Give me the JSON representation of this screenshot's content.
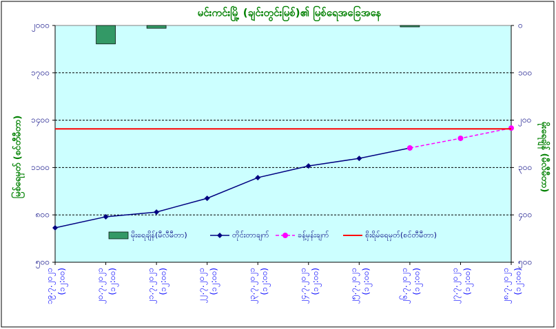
{
  "chart_data": {
    "type": "combo",
    "title": "မင်းကင်းမြို့ (ချင်းတွင်းမြစ်)၏ မြစ်ရေအခြေအနေ",
    "y_label": "မြစ်ရေမှတ် (စင်တီမီတာ)",
    "y2_label": "မိုးရေချိန် (မီလီမီတာ)",
    "categories": [
      [
        "၁၉.၇.၂၀၂၁",
        "(၁၂:၀၀)"
      ],
      [
        "၂၀.၇.၂၀၂၁",
        "(၁၂:၀၀)"
      ],
      [
        "၂၁.၇.၂၀၂၁",
        "(၁၂:၀၀)"
      ],
      [
        "၂၂.၇.၂၀၂၁",
        "(၁၂:၀၀)"
      ],
      [
        "၂၃.၇.၂၀၂၁",
        "(၁၂:၀၀)"
      ],
      [
        "၂၄.၇.၂၀၂၁",
        "(၁၂:၀၀)"
      ],
      [
        "၂၅.၇.၂၀၂၁",
        "(၁၂:၀၀)"
      ],
      [
        "၂၆.၇.၂၀၂၁",
        "(၁၂:၀၀)"
      ],
      [
        "၂၇.၇.၂၀၂၁",
        "(၁၂:၀၀)"
      ],
      [
        "၂၈.၇.၂၀၂၁",
        "(၁၂:၀၀)"
      ]
    ],
    "series": [
      {
        "name": "မိုးရေချိန်(မီလီမီတာ)",
        "kind": "bar",
        "axis": "y2",
        "color": "#339966",
        "values": [
          0,
          39,
          6,
          0,
          0,
          0,
          0,
          3,
          0,
          0
        ]
      },
      {
        "name": "တိုင်းတာချက်",
        "kind": "line",
        "color": "#000080",
        "dashed": false,
        "values": [
          718,
          788,
          818,
          905,
          1036,
          1110,
          1158,
          1224,
          null,
          null
        ]
      },
      {
        "name": "ခန့်မှန်းချက်",
        "kind": "line",
        "color": "#ff00ff",
        "dashed": true,
        "values": [
          null,
          null,
          null,
          null,
          null,
          null,
          null,
          1224,
          1285,
          1350
        ]
      }
    ],
    "threshold": {
      "name": "စိုးရိမ်ရေမှတ်(စင်တီမီတာ)",
      "value": 1345,
      "color": "#ff0000"
    },
    "ylim": [
      500,
      2000
    ],
    "yticks": [
      {
        "value": 500,
        "label": "၅၀၀"
      },
      {
        "value": 800,
        "label": "၈၀၀"
      },
      {
        "value": 1100,
        "label": "၁၁၀၀"
      },
      {
        "value": 1400,
        "label": "၁၄၀၀"
      },
      {
        "value": 1700,
        "label": "၁၇၀၀"
      },
      {
        "value": 2000,
        "label": "၂၀၀၀"
      }
    ],
    "y2lim": [
      500,
      0
    ],
    "y2ticks": [
      {
        "value": 500,
        "label": "၅၀၀"
      },
      {
        "value": 400,
        "label": "၄၀၀"
      },
      {
        "value": 300,
        "label": "၃၀၀"
      },
      {
        "value": 200,
        "label": "၂၀၀"
      },
      {
        "value": 100,
        "label": "၁၀၀"
      },
      {
        "value": 0,
        "label": "၀"
      }
    ],
    "grid": true
  }
}
